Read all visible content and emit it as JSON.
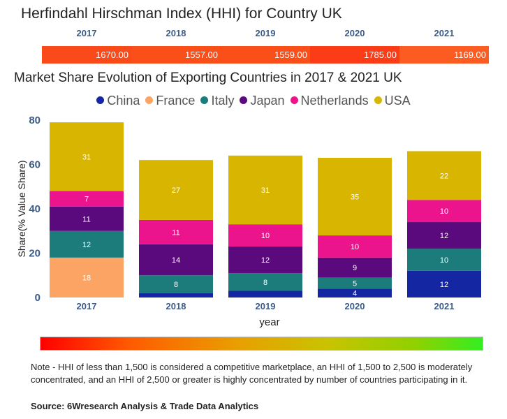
{
  "hhi": {
    "title": "Herfindahl Hirschman Index (HHI) for Country UK",
    "years": [
      "2017",
      "2018",
      "2019",
      "2020",
      "2021"
    ],
    "values": [
      "1670.00",
      "1557.00",
      "1559.00",
      "1785.00",
      "1169.00"
    ],
    "colors": [
      "#fb4a1a",
      "#fb4f1a",
      "#fb4f1a",
      "#fb3c16",
      "#fc5c22"
    ]
  },
  "chart_data": {
    "type": "bar",
    "stacked": true,
    "title": "Market Share Evolution of Exporting Countries in 2017 & 2021 UK",
    "xlabel": "year",
    "ylabel": "Share(% Value Share)",
    "ylim": [
      0,
      80
    ],
    "yticks": [
      "0",
      "20",
      "40",
      "60",
      "80"
    ],
    "categories": [
      "2017",
      "2018",
      "2019",
      "2020",
      "2021"
    ],
    "legend_position": "top",
    "series": [
      {
        "name": "China",
        "color": "#1526a3",
        "values": [
          0,
          2,
          3,
          4,
          12
        ],
        "labels": [
          "",
          "",
          "",
          "4",
          "12"
        ]
      },
      {
        "name": "France",
        "color": "#fca463",
        "values": [
          18,
          0,
          0,
          0,
          0
        ],
        "labels": [
          "18",
          "",
          "",
          "",
          ""
        ]
      },
      {
        "name": "Italy",
        "color": "#1c7b7b",
        "values": [
          12,
          8,
          8,
          5,
          10
        ],
        "labels": [
          "12",
          "8",
          "8",
          "5",
          "10"
        ]
      },
      {
        "name": "Japan",
        "color": "#5a0a7c",
        "values": [
          11,
          14,
          12,
          9,
          12
        ],
        "labels": [
          "11",
          "14",
          "12",
          "9",
          "12"
        ]
      },
      {
        "name": "Netherlands",
        "color": "#ec148c",
        "values": [
          7,
          11,
          10,
          10,
          10
        ],
        "labels": [
          "7",
          "11",
          "10",
          "10",
          "10"
        ]
      },
      {
        "name": "USA",
        "color": "#d8b500",
        "values": [
          31,
          27,
          31,
          35,
          22
        ],
        "labels": [
          "31",
          "27",
          "31",
          "35",
          "22"
        ]
      }
    ]
  },
  "footer": {
    "note": "Note - HHI of less than 1,500 is considered a competitive marketplace, an HHI of 1,500 to 2,500 is moderately concentrated, and an HHI of 2,500 or greater is highly concentrated by number of countries participating in it.",
    "source": "Source: 6Wresearch Analysis & Trade Data Analytics"
  }
}
